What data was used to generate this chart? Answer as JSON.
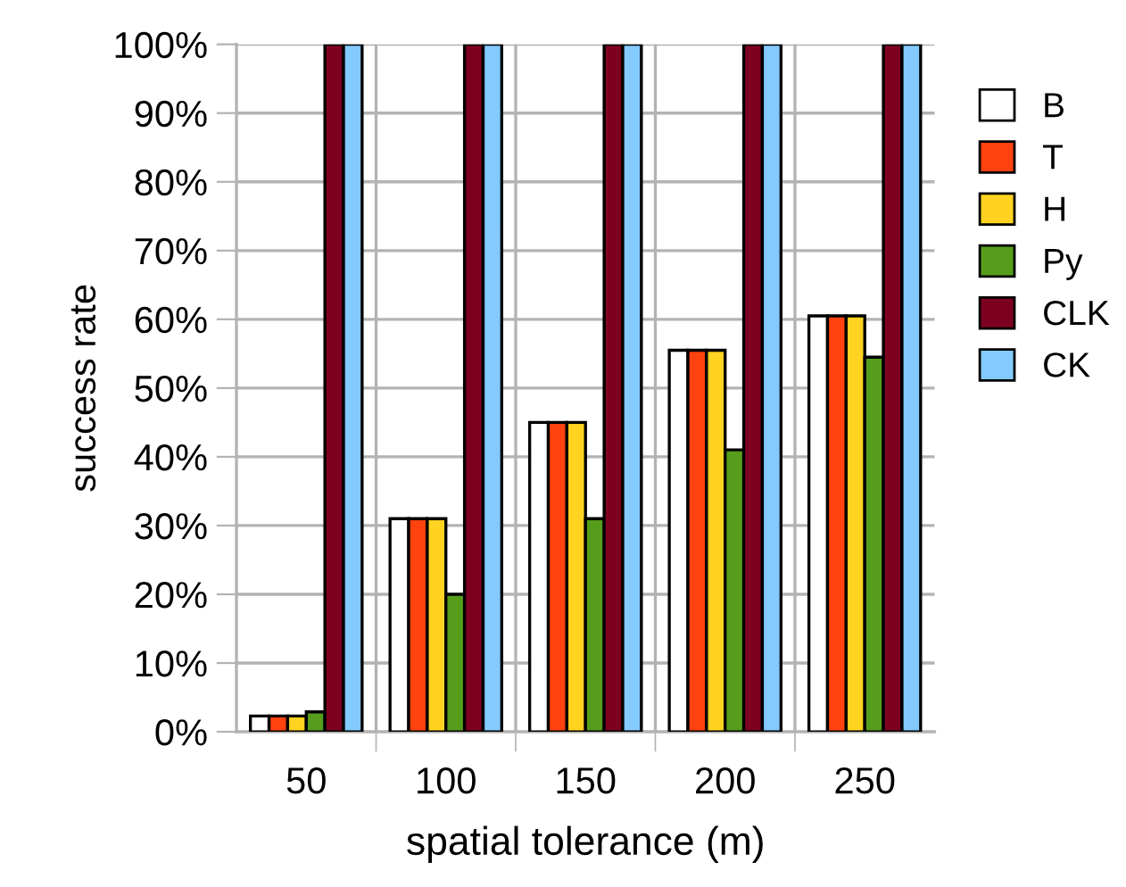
{
  "chart_data": {
    "type": "bar",
    "xlabel": "spatial tolerance (m)",
    "ylabel": "success rate",
    "categories": [
      "50",
      "100",
      "150",
      "200",
      "250"
    ],
    "series": [
      {
        "name": "B",
        "color": "#ffffff",
        "values": [
          2.3,
          31,
          45,
          55.5,
          60.5
        ]
      },
      {
        "name": "T",
        "color": "#ff420e",
        "values": [
          2.3,
          31,
          45,
          55.5,
          60.5
        ]
      },
      {
        "name": "H",
        "color": "#ffd320",
        "values": [
          2.3,
          31,
          45,
          55.5,
          60.5
        ]
      },
      {
        "name": "Py",
        "color": "#579d1c",
        "values": [
          2.9,
          20,
          31,
          41,
          54.5
        ]
      },
      {
        "name": "CLK",
        "color": "#7e0021",
        "values": [
          100,
          100,
          100,
          100,
          100
        ]
      },
      {
        "name": "CK",
        "color": "#83caff",
        "values": [
          100,
          100,
          100,
          100,
          100
        ]
      }
    ],
    "ylim": [
      0,
      100
    ],
    "yticks": [
      {
        "value": 0,
        "label": "0%"
      },
      {
        "value": 10,
        "label": "10%"
      },
      {
        "value": 20,
        "label": "20%"
      },
      {
        "value": 30,
        "label": "30%"
      },
      {
        "value": 40,
        "label": "40%"
      },
      {
        "value": 50,
        "label": "50%"
      },
      {
        "value": 60,
        "label": "60%"
      },
      {
        "value": 70,
        "label": "70%"
      },
      {
        "value": 80,
        "label": "80%"
      },
      {
        "value": 90,
        "label": "90%"
      },
      {
        "value": 100,
        "label": "100%"
      }
    ],
    "grid": true,
    "legend": "right"
  }
}
